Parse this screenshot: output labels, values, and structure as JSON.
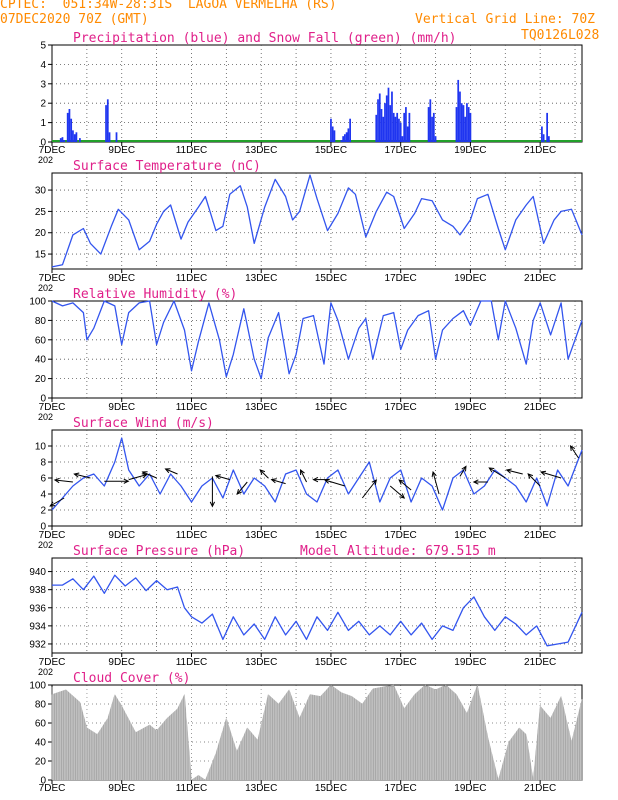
{
  "header": {
    "line1": "CPTEC:  051:34W-28:31S  LAGOA VERMELHA (RS)",
    "line2_left": "07DEC2020 70Z (GMT)",
    "line2_right": "Vertical Grid Line: 70Z",
    "code": "TQ0126L028"
  },
  "colors": {
    "header": "#ff8a00",
    "titles": "#e0208a",
    "precip": "#1f35f0",
    "snow": "#22a02a",
    "line": "#3355ee",
    "cloud": "#a9a9a9",
    "arrow": "#000000"
  },
  "x_axis": {
    "labels": [
      "7DEC",
      "9DEC",
      "11DEC",
      "13DEC",
      "15DEC",
      "17DEC",
      "19DEC",
      "21DEC"
    ],
    "label_days": [
      0,
      2,
      4,
      6,
      8,
      10,
      12,
      14
    ],
    "cut_label": "202"
  },
  "chart_data": [
    {
      "id": "precip",
      "type": "bar",
      "title": "Precipitation (blue) and Snow Fall (green) (mm/h)",
      "ylim": [
        0,
        5
      ],
      "yticks": [
        0,
        1,
        2,
        3,
        4,
        5
      ],
      "grid": true,
      "x_unit": "days since 7DEC 70Z",
      "x": [
        0.25,
        0.3,
        0.35,
        0.45,
        0.5,
        0.55,
        0.6,
        0.65,
        0.7,
        0.8,
        1.55,
        1.6,
        1.65,
        1.85,
        8.0,
        8.05,
        8.1,
        8.3,
        8.35,
        8.4,
        8.45,
        8.5,
        8.55,
        9.3,
        9.35,
        9.4,
        9.45,
        9.5,
        9.55,
        9.6,
        9.65,
        9.7,
        9.75,
        9.8,
        9.85,
        9.9,
        9.95,
        10.0,
        10.05,
        10.1,
        10.15,
        10.2,
        10.25,
        10.8,
        10.85,
        10.9,
        10.95,
        11.0,
        11.6,
        11.65,
        11.7,
        11.75,
        11.8,
        11.85,
        11.9,
        11.95,
        12.0,
        14.05,
        14.1,
        14.2,
        14.25
      ],
      "values": [
        0.2,
        0.25,
        0.1,
        1.5,
        1.7,
        1.2,
        0.6,
        0.4,
        0.5,
        0.2,
        1.9,
        2.2,
        0.5,
        0.5,
        1.2,
        0.8,
        0.6,
        0.1,
        0.3,
        0.4,
        0.5,
        0.7,
        1.2,
        1.4,
        2.2,
        2.5,
        1.7,
        1.3,
        2.0,
        2.4,
        2.8,
        1.9,
        2.6,
        1.5,
        1.3,
        1.5,
        1.2,
        1.0,
        0.3,
        1.5,
        1.8,
        0.8,
        1.5,
        1.8,
        2.2,
        1.3,
        1.5,
        0.3,
        1.8,
        3.2,
        2.6,
        2.0,
        1.9,
        1.3,
        2.0,
        1.8,
        1.5,
        0.8,
        0.4,
        1.5,
        0.3
      ],
      "snow": {
        "x_range": [
          0,
          15.2
        ],
        "value": 0.03
      }
    },
    {
      "id": "temp",
      "type": "line",
      "title": "Surface Temperature (nC)",
      "ylim": [
        11.5,
        34
      ],
      "yticks": [
        15,
        20,
        25,
        30
      ],
      "grid": true,
      "x": [
        0,
        0.3,
        0.6,
        0.9,
        1.1,
        1.4,
        1.7,
        1.9,
        2.2,
        2.5,
        2.8,
        3.0,
        3.2,
        3.4,
        3.7,
        3.9,
        4.2,
        4.4,
        4.7,
        4.9,
        5.1,
        5.4,
        5.6,
        5.8,
        6.1,
        6.4,
        6.7,
        6.9,
        7.1,
        7.4,
        7.6,
        7.9,
        8.2,
        8.5,
        8.7,
        9.0,
        9.3,
        9.6,
        9.8,
        10.1,
        10.4,
        10.6,
        10.9,
        11.2,
        11.5,
        11.7,
        12.0,
        12.2,
        12.5,
        12.8,
        13.0,
        13.3,
        13.6,
        13.8,
        14.1,
        14.4,
        14.6,
        14.9,
        15.2
      ],
      "values": [
        12,
        12.5,
        19.5,
        21,
        17.5,
        15,
        21.5,
        25.5,
        23,
        16,
        18,
        22,
        25,
        26.5,
        18.5,
        22.5,
        26,
        28.5,
        20.5,
        21.5,
        29,
        31,
        26,
        17.5,
        26,
        32.5,
        28.5,
        23,
        25,
        33.5,
        28,
        20.5,
        24.5,
        30.5,
        29,
        19,
        25,
        29.5,
        28.5,
        21,
        24.5,
        28,
        27.5,
        23,
        21.5,
        19.5,
        23,
        28,
        29,
        21,
        16,
        23,
        26.5,
        28.5,
        17.5,
        23,
        25,
        25.5,
        19.5
      ]
    },
    {
      "id": "rh",
      "type": "line",
      "title": "Relative Humidity (%)",
      "ylim": [
        0,
        100
      ],
      "yticks": [
        0,
        20,
        40,
        60,
        80,
        100
      ],
      "grid": true,
      "x": [
        0,
        0.3,
        0.6,
        0.9,
        1.0,
        1.2,
        1.5,
        1.8,
        2.0,
        2.2,
        2.5,
        2.8,
        3.0,
        3.2,
        3.5,
        3.8,
        4.0,
        4.2,
        4.5,
        4.8,
        5.0,
        5.2,
        5.5,
        5.8,
        6.0,
        6.2,
        6.5,
        6.8,
        7.0,
        7.2,
        7.5,
        7.8,
        8.0,
        8.2,
        8.5,
        8.8,
        9.0,
        9.2,
        9.5,
        9.8,
        10.0,
        10.2,
        10.5,
        10.8,
        11.0,
        11.2,
        11.5,
        11.8,
        12.0,
        12.3,
        12.6,
        12.8,
        13.0,
        13.3,
        13.6,
        13.8,
        14.0,
        14.3,
        14.6,
        14.8,
        15.2
      ],
      "values": [
        100,
        95,
        98,
        88,
        60,
        72,
        100,
        95,
        55,
        88,
        98,
        100,
        55,
        78,
        100,
        70,
        28,
        58,
        98,
        60,
        22,
        45,
        92,
        40,
        20,
        62,
        88,
        25,
        45,
        82,
        85,
        35,
        98,
        80,
        40,
        72,
        82,
        40,
        85,
        88,
        50,
        70,
        85,
        90,
        40,
        70,
        82,
        90,
        75,
        100,
        100,
        60,
        100,
        72,
        35,
        80,
        98,
        65,
        98,
        40,
        80
      ]
    },
    {
      "id": "wind",
      "type": "line",
      "title": "Surface Wind (m/s)",
      "ylim": [
        0,
        12
      ],
      "yticks": [
        0,
        2,
        4,
        6,
        8,
        10
      ],
      "grid": true,
      "x": [
        0,
        0.3,
        0.6,
        0.9,
        1.2,
        1.5,
        1.8,
        2.0,
        2.2,
        2.5,
        2.8,
        3.1,
        3.4,
        3.7,
        4.0,
        4.3,
        4.6,
        4.9,
        5.2,
        5.5,
        5.8,
        6.1,
        6.4,
        6.7,
        7.0,
        7.3,
        7.6,
        7.9,
        8.2,
        8.5,
        8.8,
        9.1,
        9.4,
        9.7,
        10.0,
        10.3,
        10.6,
        10.9,
        11.2,
        11.5,
        11.8,
        12.1,
        12.4,
        12.7,
        13.0,
        13.3,
        13.6,
        13.9,
        14.2,
        14.5,
        14.8,
        15.2
      ],
      "values": [
        2,
        3.5,
        5,
        6,
        6.5,
        5,
        8,
        11,
        7,
        5,
        6.5,
        4,
        6.5,
        5,
        3,
        5,
        6,
        3.5,
        7,
        4,
        6,
        5,
        3,
        6.5,
        7,
        4,
        3,
        6,
        7,
        4,
        6,
        8,
        3,
        6,
        7,
        3,
        6,
        5,
        2,
        6,
        7,
        4,
        5,
        7,
        6,
        5,
        3,
        6,
        2.5,
        7,
        5,
        9.5
      ],
      "arrows": [
        {
          "x": 0.35,
          "y": 3.5,
          "dx": -14,
          "dy": 8
        },
        {
          "x": 0.6,
          "y": 5.5,
          "dx": -18,
          "dy": -2
        },
        {
          "x": 1.1,
          "y": 6,
          "dx": -16,
          "dy": -4
        },
        {
          "x": 1.5,
          "y": 5.6,
          "dx": 24,
          "dy": 0
        },
        {
          "x": 2.2,
          "y": 5.8,
          "dx": 18,
          "dy": -5
        },
        {
          "x": 3.0,
          "y": 6.0,
          "dx": -14,
          "dy": -6
        },
        {
          "x": 3.6,
          "y": 6.5,
          "dx": -12,
          "dy": -5
        },
        {
          "x": 4.6,
          "y": 6.2,
          "dx": 0,
          "dy": 30
        },
        {
          "x": 5.1,
          "y": 5.8,
          "dx": -14,
          "dy": -4
        },
        {
          "x": 5.6,
          "y": 5.5,
          "dx": -10,
          "dy": 12
        },
        {
          "x": 6.2,
          "y": 6.0,
          "dx": -8,
          "dy": -8
        },
        {
          "x": 6.7,
          "y": 5.3,
          "dx": -14,
          "dy": -4
        },
        {
          "x": 7.3,
          "y": 5.5,
          "dx": -6,
          "dy": -12
        },
        {
          "x": 7.9,
          "y": 5.8,
          "dx": -14,
          "dy": 0
        },
        {
          "x": 8.4,
          "y": 5.0,
          "dx": -20,
          "dy": -6
        },
        {
          "x": 8.9,
          "y": 3.5,
          "dx": 14,
          "dy": -18
        },
        {
          "x": 9.7,
          "y": 5.0,
          "dx": 14,
          "dy": 12
        },
        {
          "x": 10.3,
          "y": 4.5,
          "dx": -12,
          "dy": -10
        },
        {
          "x": 11.1,
          "y": 4.0,
          "dx": -6,
          "dy": -22
        },
        {
          "x": 11.7,
          "y": 6.2,
          "dx": 6,
          "dy": -10
        },
        {
          "x": 12.5,
          "y": 5.5,
          "dx": -14,
          "dy": 0
        },
        {
          "x": 13.0,
          "y": 6.0,
          "dx": -16,
          "dy": -10
        },
        {
          "x": 13.5,
          "y": 6.5,
          "dx": -16,
          "dy": -4
        },
        {
          "x": 14.0,
          "y": 5.0,
          "dx": -12,
          "dy": -12
        },
        {
          "x": 14.6,
          "y": 6.0,
          "dx": -20,
          "dy": -6
        },
        {
          "x": 15.1,
          "y": 8.5,
          "dx": -8,
          "dy": -12
        }
      ]
    },
    {
      "id": "press",
      "type": "line",
      "title": "Surface Pressure (hPa)",
      "title_right": "Model Altitude: 679.515  m",
      "ylim": [
        931,
        941.5
      ],
      "yticks": [
        932,
        934,
        936,
        938,
        940
      ],
      "grid": true,
      "x": [
        0,
        0.3,
        0.6,
        0.9,
        1.2,
        1.5,
        1.8,
        2.1,
        2.4,
        2.7,
        3.0,
        3.3,
        3.6,
        3.8,
        4.0,
        4.3,
        4.6,
        4.9,
        5.2,
        5.5,
        5.8,
        6.1,
        6.4,
        6.7,
        7.0,
        7.3,
        7.6,
        7.9,
        8.2,
        8.5,
        8.8,
        9.1,
        9.4,
        9.7,
        10.0,
        10.3,
        10.6,
        10.9,
        11.2,
        11.5,
        11.8,
        12.1,
        12.4,
        12.7,
        13.0,
        13.3,
        13.6,
        13.9,
        14.2,
        14.5,
        14.8,
        15.2
      ],
      "values": [
        938.5,
        938.5,
        939.2,
        938.0,
        939.5,
        937.6,
        939.6,
        938.4,
        939.3,
        937.9,
        939.0,
        938.0,
        938.3,
        936.0,
        935.0,
        934.3,
        935.3,
        932.5,
        935.0,
        933.0,
        934.2,
        932.5,
        935.0,
        933.0,
        934.5,
        932.5,
        935.0,
        933.5,
        935.5,
        933.5,
        934.5,
        933.0,
        934.0,
        933.0,
        934.5,
        933.0,
        934.3,
        932.5,
        934.0,
        933.5,
        936.0,
        937.2,
        935.0,
        933.5,
        935.0,
        934.2,
        933.0,
        934.0,
        931.8,
        932.0,
        932.2,
        935.5
      ]
    },
    {
      "id": "cloud",
      "type": "area",
      "title": "Cloud Cover (%)",
      "ylim": [
        0,
        100
      ],
      "yticks": [
        0,
        20,
        40,
        60,
        80,
        100
      ],
      "grid": true,
      "x": [
        0,
        0.4,
        0.8,
        1.0,
        1.3,
        1.6,
        1.8,
        2.0,
        2.4,
        2.8,
        3.0,
        3.3,
        3.6,
        3.8,
        4.0,
        4.2,
        4.4,
        4.7,
        5.0,
        5.3,
        5.6,
        5.9,
        6.2,
        6.5,
        6.8,
        7.1,
        7.4,
        7.7,
        8.0,
        8.3,
        8.6,
        8.9,
        9.2,
        9.5,
        9.8,
        10.1,
        10.4,
        10.7,
        11.0,
        11.3,
        11.6,
        11.9,
        12.2,
        12.5,
        12.8,
        13.1,
        13.4,
        13.6,
        13.8,
        14.0,
        14.3,
        14.6,
        14.9,
        15.2
      ],
      "values": [
        90,
        95,
        82,
        55,
        48,
        65,
        90,
        78,
        50,
        58,
        52,
        65,
        75,
        90,
        0,
        5,
        0,
        28,
        65,
        30,
        55,
        42,
        90,
        80,
        95,
        65,
        90,
        88,
        100,
        92,
        88,
        80,
        96,
        98,
        100,
        75,
        90,
        100,
        95,
        100,
        90,
        70,
        100,
        45,
        0,
        40,
        55,
        48,
        0,
        78,
        65,
        88,
        40,
        85
      ]
    }
  ]
}
